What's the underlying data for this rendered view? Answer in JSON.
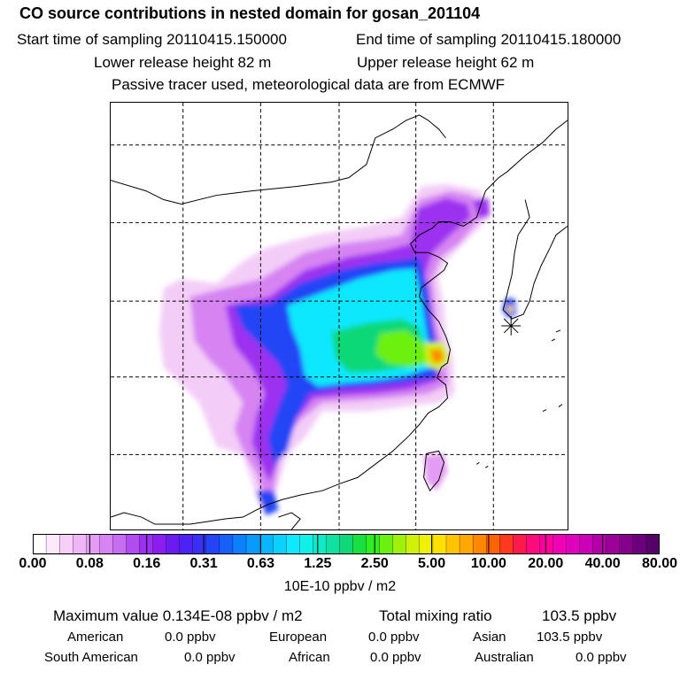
{
  "header": {
    "title": "CO  source contributions in nested domain for gosan_201104",
    "start_label": "Start time of sampling 20110415.150000",
    "end_label": "End time of sampling 20110415.180000",
    "lower_label": "Lower release height   82 m",
    "upper_label": "Upper release height   62 m",
    "note": "Passive tracer used, meteorological data are from ECMWF"
  },
  "colorbar": {
    "ticks": [
      "0.00",
      "0.08",
      "0.16",
      "0.31",
      "0.63",
      "1.25",
      "2.50",
      "5.00",
      "10.00",
      "20.00",
      "40.00",
      "80.00"
    ],
    "units": "10E-10 ppbv / m2",
    "colors": [
      "#ffffff",
      "#fbe8fb",
      "#f6cff8",
      "#efb6f6",
      "#e39cf3",
      "#d684f2",
      "#c66cf1",
      "#b24cf0",
      "#9c30f0",
      "#8a1ef0",
      "#6a1cf0",
      "#4d22f2",
      "#3a30f4",
      "#2444f6",
      "#1660f8",
      "#0c80fa",
      "#0a9afc",
      "#08b6fd",
      "#0cd0fe",
      "#10e8ff",
      "#10f0e8",
      "#10e8c8",
      "#10e0a0",
      "#10d878",
      "#18e040",
      "#30ec20",
      "#6cf010",
      "#a0f00c",
      "#cff008",
      "#f0f004",
      "#ffe000",
      "#ffc400",
      "#ffa800",
      "#ff8800",
      "#ff6400",
      "#ff3a1c",
      "#ff1a4c",
      "#ff0a7c",
      "#ff009c",
      "#f000b4",
      "#e000c0",
      "#cc00b8",
      "#b400a8",
      "#9c0098",
      "#84008a",
      "#6c007c",
      "#540068"
    ]
  },
  "stats": {
    "max_label": "Maximum value  0.134E-08 ppbv / m2",
    "total_label": "Total mixing ratio",
    "total_value": "103.5 ppbv",
    "american_label": "American",
    "american_value": "0.0 ppbv",
    "european_label": "European",
    "european_value": "0.0 ppbv",
    "asian_label": "Asian",
    "asian_value": "103.5 ppbv",
    "south_american_label": "South American",
    "south_american_value": "0.0 ppbv",
    "african_label": "African",
    "african_value": "0.0 ppbv",
    "australian_label": "Australian",
    "australian_value": "0.0 ppbv"
  }
}
